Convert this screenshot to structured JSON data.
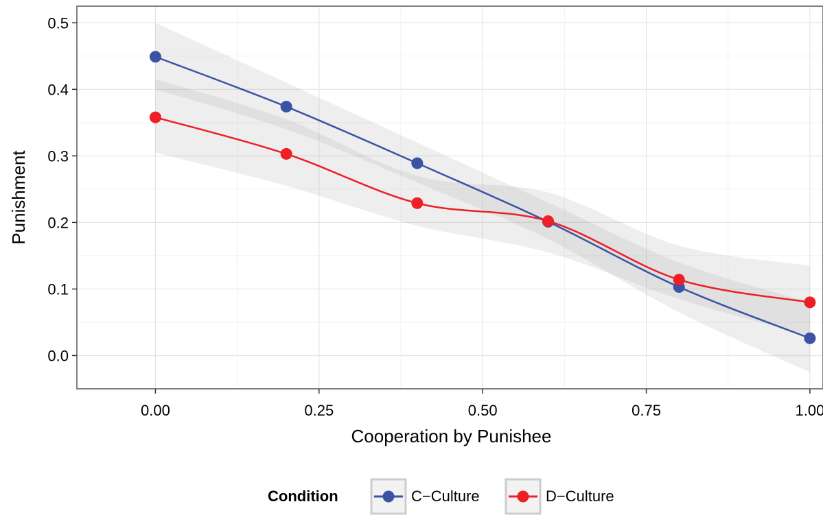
{
  "chart_data": {
    "type": "line",
    "xlabel": "Cooperation by Punishee",
    "ylabel": "Punishment",
    "xlim": [
      -0.12,
      1.02
    ],
    "ylim": [
      -0.05,
      0.525
    ],
    "x_ticks": [
      "0.00",
      "0.25",
      "0.50",
      "0.75",
      "1.00"
    ],
    "x_tick_values": [
      0,
      0.25,
      0.5,
      0.75,
      1.0
    ],
    "y_ticks": [
      "0.0",
      "0.1",
      "0.2",
      "0.3",
      "0.4",
      "0.5"
    ],
    "y_tick_values": [
      0,
      0.1,
      0.2,
      0.3,
      0.4,
      0.5
    ],
    "grid": true,
    "legend": {
      "title": "Condition",
      "position": "bottom"
    },
    "series": [
      {
        "name": "C−Culture",
        "color": "#3A53A4",
        "x": [
          0,
          0.2,
          0.4,
          0.6,
          0.8,
          1.0
        ],
        "values": [
          0.449,
          0.374,
          0.289,
          0.201,
          0.103,
          0.026
        ],
        "ci_lower": [
          0.4,
          0.34,
          0.26,
          0.175,
          0.065,
          -0.025
        ],
        "ci_upper": [
          0.5,
          0.41,
          0.32,
          0.23,
          0.14,
          0.08
        ]
      },
      {
        "name": "D−Culture",
        "color": "#EE1F25",
        "x": [
          0,
          0.2,
          0.4,
          0.6,
          0.8,
          1.0
        ],
        "values": [
          0.358,
          0.303,
          0.229,
          0.202,
          0.114,
          0.08
        ],
        "ci_lower": [
          0.305,
          0.255,
          0.195,
          0.155,
          0.085,
          0.03
        ],
        "ci_upper": [
          0.415,
          0.355,
          0.27,
          0.245,
          0.165,
          0.135
        ]
      }
    ]
  }
}
